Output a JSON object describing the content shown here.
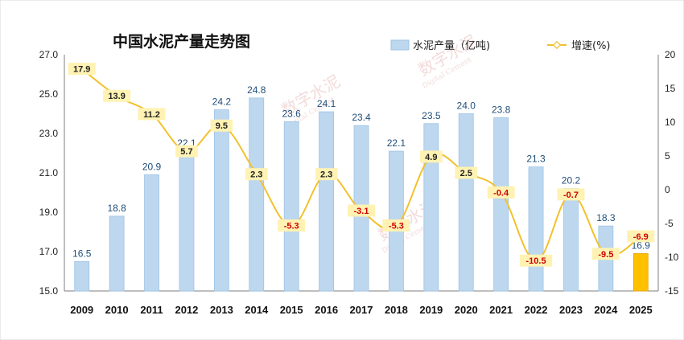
{
  "chart_data": {
    "type": "bar",
    "title": "中国水泥产量走势图",
    "categories": [
      "2009",
      "2010",
      "2011",
      "2012",
      "2013",
      "2014",
      "2015",
      "2016",
      "2017",
      "2018",
      "2019",
      "2020",
      "2021",
      "2022",
      "2023",
      "2024",
      "2025"
    ],
    "series": [
      {
        "name": "水泥产量（亿吨)",
        "type": "bar",
        "axis": "left",
        "values": [
          16.5,
          18.8,
          20.9,
          22.1,
          24.2,
          24.8,
          23.6,
          24.1,
          23.4,
          22.1,
          23.5,
          24.0,
          23.8,
          21.3,
          20.2,
          18.3,
          16.9
        ],
        "labels": [
          "16.5",
          "18.8",
          "20.9",
          "22.1",
          "24.2",
          "24.8",
          "23.6",
          "24.1",
          "23.4",
          "22.1",
          "23.5",
          "24.0",
          "23.8",
          "21.3",
          "20.2",
          "18.3",
          "16.9"
        ],
        "highlight_index": 16
      },
      {
        "name": "增速(%)",
        "type": "line",
        "axis": "right",
        "smooth": true,
        "values": [
          17.9,
          13.9,
          11.2,
          5.7,
          9.5,
          2.3,
          -5.3,
          2.3,
          -3.1,
          -5.3,
          4.9,
          2.5,
          -0.4,
          -10.5,
          -0.7,
          -9.5,
          -6.9
        ],
        "labels": [
          "17.9",
          "13.9",
          "11.2",
          "5.7",
          "9.5",
          "2.3",
          "-5.3",
          "2.3",
          "-3.1",
          "-5.3",
          "4.9",
          "2.5",
          "-0.4",
          "-10.5",
          "-0.7",
          "-9.5",
          "-6.9"
        ]
      }
    ],
    "y_left": {
      "min": 15,
      "max": 27,
      "ticks": [
        15,
        17,
        19,
        21,
        23,
        25,
        27
      ],
      "tick_labels": [
        "15.0",
        "17.0",
        "19.0",
        "21.0",
        "23.0",
        "25.0",
        "27.0"
      ]
    },
    "y_right": {
      "min": -15,
      "max": 20,
      "ticks": [
        -15,
        -10,
        -5,
        0,
        5,
        10,
        15,
        20
      ],
      "tick_labels": [
        "-15",
        "-10",
        "-5",
        "0",
        "5",
        "10",
        "15",
        "20"
      ]
    },
    "legend": [
      "水泥产量（亿吨)",
      "增速(%)"
    ],
    "legend_position": "top-right"
  },
  "colors": {
    "bar": "#bdd7ee",
    "bar_border": "#9dc3e6",
    "bar_highlight": "#ffc000",
    "line": "#f2c12e",
    "marker_fill": "#ffffff",
    "label_bg": "#fff2b3",
    "negative_label": "#d00000",
    "axis": "#7f7f7f"
  },
  "watermark": {
    "text": "数字水泥",
    "subtext": "Digital Cement"
  }
}
